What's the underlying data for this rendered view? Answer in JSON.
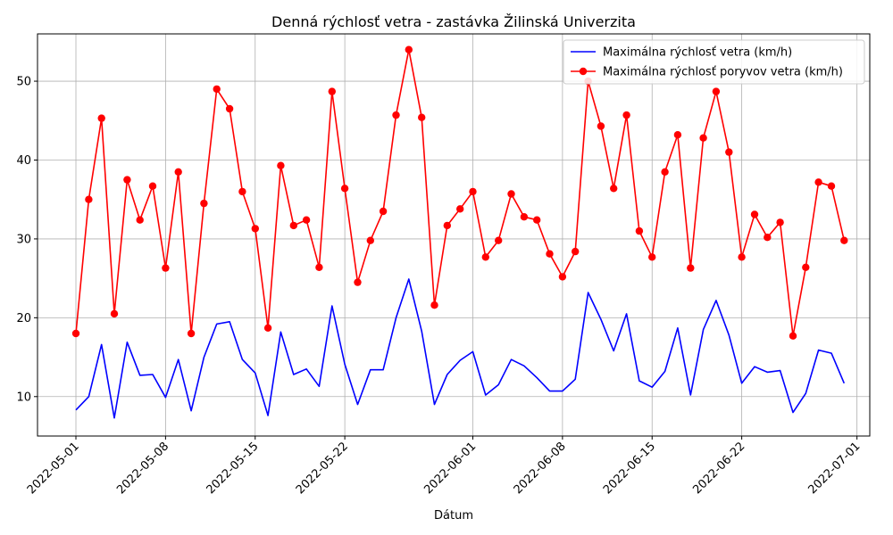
{
  "chart_data": {
    "type": "line",
    "title": "Denná rýchlosť vetra - zastávka Žilinská Univerzita",
    "xlabel": "Dátum",
    "ylabel": "",
    "x_start": "2022-05-01",
    "x": [
      "2022-05-01",
      "2022-05-02",
      "2022-05-03",
      "2022-05-04",
      "2022-05-05",
      "2022-05-06",
      "2022-05-07",
      "2022-05-08",
      "2022-05-09",
      "2022-05-10",
      "2022-05-11",
      "2022-05-12",
      "2022-05-13",
      "2022-05-14",
      "2022-05-15",
      "2022-05-16",
      "2022-05-17",
      "2022-05-18",
      "2022-05-19",
      "2022-05-20",
      "2022-05-21",
      "2022-05-22",
      "2022-05-23",
      "2022-05-24",
      "2022-05-25",
      "2022-05-26",
      "2022-05-27",
      "2022-05-28",
      "2022-05-29",
      "2022-05-30",
      "2022-05-31",
      "2022-06-01",
      "2022-06-02",
      "2022-06-03",
      "2022-06-04",
      "2022-06-05",
      "2022-06-06",
      "2022-06-07",
      "2022-06-08",
      "2022-06-09",
      "2022-06-10",
      "2022-06-11",
      "2022-06-12",
      "2022-06-13",
      "2022-06-14",
      "2022-06-15",
      "2022-06-16",
      "2022-06-17",
      "2022-06-18",
      "2022-06-19",
      "2022-06-20",
      "2022-06-21",
      "2022-06-22",
      "2022-06-23",
      "2022-06-24",
      "2022-06-25",
      "2022-06-26",
      "2022-06-27",
      "2022-06-28",
      "2022-06-29",
      "2022-06-30"
    ],
    "xlim": [
      "2022-04-28",
      "2022-07-02"
    ],
    "ylim": [
      5,
      56
    ],
    "xticks": [
      "2022-05-01",
      "2022-05-08",
      "2022-05-15",
      "2022-05-22",
      "2022-06-01",
      "2022-06-08",
      "2022-06-15",
      "2022-06-22",
      "2022-07-01"
    ],
    "yticks": [
      10,
      20,
      30,
      40,
      50
    ],
    "grid": true,
    "legend_position": "top-right",
    "series": [
      {
        "name": "Maximálna rýchlosť vetra (km/h)",
        "color": "#0000ff",
        "marker": "none",
        "values": [
          8.3,
          10.0,
          16.6,
          7.3,
          16.9,
          12.7,
          12.8,
          9.9,
          14.7,
          8.2,
          15.0,
          19.2,
          19.5,
          14.7,
          13.0,
          7.6,
          18.2,
          12.8,
          13.5,
          11.3,
          21.5,
          14.1,
          9.0,
          13.4,
          13.4,
          20.0,
          24.9,
          18.3,
          9.0,
          12.8,
          14.6,
          15.7,
          10.2,
          11.5,
          14.7,
          13.9,
          12.4,
          10.7,
          10.7,
          12.2,
          23.2,
          19.8,
          15.8,
          20.5,
          12.0,
          11.2,
          13.2,
          18.7,
          10.2,
          18.5,
          22.2,
          17.8,
          11.7,
          13.8,
          13.1,
          13.3,
          8.0,
          10.4,
          15.9,
          15.5,
          11.7
        ]
      },
      {
        "name": "Maximálna rýchlosť poryvov vetra (km/h)",
        "color": "#ff0000",
        "marker": "circle",
        "values": [
          18.0,
          35.0,
          45.3,
          20.5,
          37.5,
          32.4,
          36.7,
          26.3,
          38.5,
          18.0,
          34.5,
          49.0,
          46.5,
          36.0,
          31.3,
          18.7,
          39.3,
          31.7,
          32.4,
          26.4,
          48.7,
          36.4,
          24.5,
          29.8,
          33.5,
          45.7,
          54.0,
          45.4,
          21.6,
          31.7,
          33.8,
          36.0,
          27.7,
          29.8,
          35.7,
          32.8,
          32.4,
          28.1,
          25.2,
          28.4,
          50.0,
          44.3,
          36.4,
          45.7,
          31.0,
          27.7,
          38.5,
          43.2,
          26.3,
          42.8,
          48.7,
          41.0,
          27.7,
          33.1,
          30.2,
          32.1,
          17.7,
          26.4,
          37.2,
          36.7,
          29.8
        ]
      }
    ]
  }
}
